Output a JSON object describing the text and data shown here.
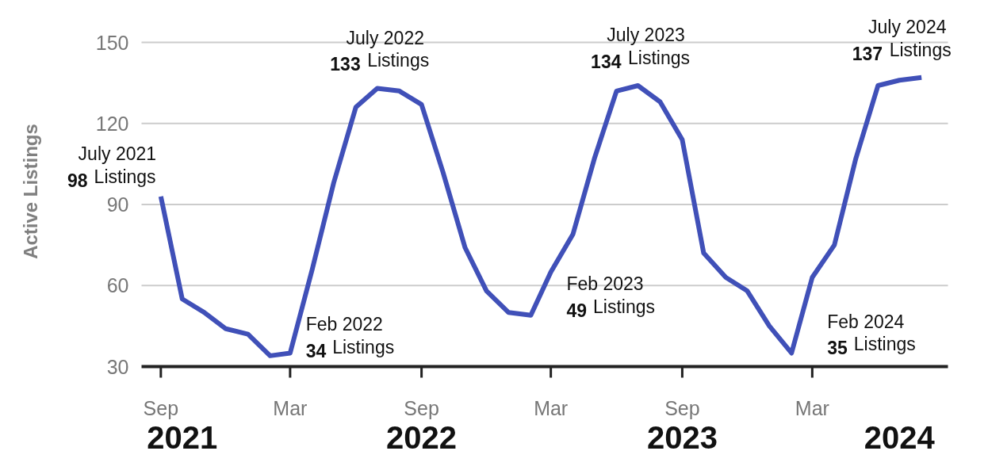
{
  "chart_data": {
    "type": "line",
    "ylabel": "Active Listings",
    "x": [
      "2021-09",
      "2021-10",
      "2021-11",
      "2021-12",
      "2022-01",
      "2022-02",
      "2022-03",
      "2022-04",
      "2022-05",
      "2022-06",
      "2022-07",
      "2022-08",
      "2022-09",
      "2022-10",
      "2022-11",
      "2022-12",
      "2023-01",
      "2023-02",
      "2023-03",
      "2023-04",
      "2023-05",
      "2023-06",
      "2023-07",
      "2023-08",
      "2023-09",
      "2023-10",
      "2023-11",
      "2023-12",
      "2024-01",
      "2024-02",
      "2024-03",
      "2024-04",
      "2024-05",
      "2024-06",
      "2024-07",
      "2024-08"
    ],
    "series": [
      {
        "color": "#4050b8",
        "values": [
          93,
          55,
          50,
          44,
          42,
          34,
          35,
          66,
          98,
          126,
          133,
          132,
          127,
          102,
          74,
          58,
          50,
          49,
          65,
          79,
          107,
          132,
          134,
          128,
          114,
          72,
          63,
          58,
          45,
          35,
          63,
          75,
          107,
          134,
          136,
          137
        ]
      }
    ],
    "xlim": [
      "2021-08-05",
      "2024-09-07"
    ],
    "ylim": [
      30,
      150
    ],
    "xticks": [
      {
        "value": "2021-09",
        "label": "Sep"
      },
      {
        "value": "2022-03",
        "label": "Mar"
      },
      {
        "value": "2022-09",
        "label": "Sep"
      },
      {
        "value": "2023-03",
        "label": "Mar"
      },
      {
        "value": "2023-09",
        "label": "Sep"
      },
      {
        "value": "2024-03",
        "label": "Mar"
      }
    ],
    "yticks": [
      30,
      60,
      90,
      120,
      150
    ],
    "grid": "y",
    "line_style": "solid",
    "annotations": [
      "July 2021\n98 Listings",
      {
        "text": "July 2022\n133 Listings",
        "x": "2022-07",
        "y": 133
      },
      {
        "text": "Feb 2022\n34 Listings",
        "x": "2022-02",
        "y": 34
      },
      {
        "text": "July 2023\n134 Listings",
        "x": "2023-07",
        "y": 134
      },
      {
        "text": "Feb 2023\n49 Listings",
        "x": "2023-02",
        "y": 49
      },
      {
        "text": "July 2024\n137 Listings",
        "x": "2024-07",
        "y": 137
      },
      {
        "text": "Feb 2024\n35 Listings",
        "x": "2024-02",
        "y": 35
      }
    ],
    "x2lim": [
      "2021-08-05",
      "2024-09-07"
    ],
    "x2ticks": [
      {
        "value": "2021-10",
        "label": "2021"
      },
      {
        "value": "2022-09",
        "label": "2022"
      },
      {
        "value": "2023-09",
        "label": "2023"
      },
      {
        "value": "2024-07",
        "label": "2024"
      }
    ]
  }
}
